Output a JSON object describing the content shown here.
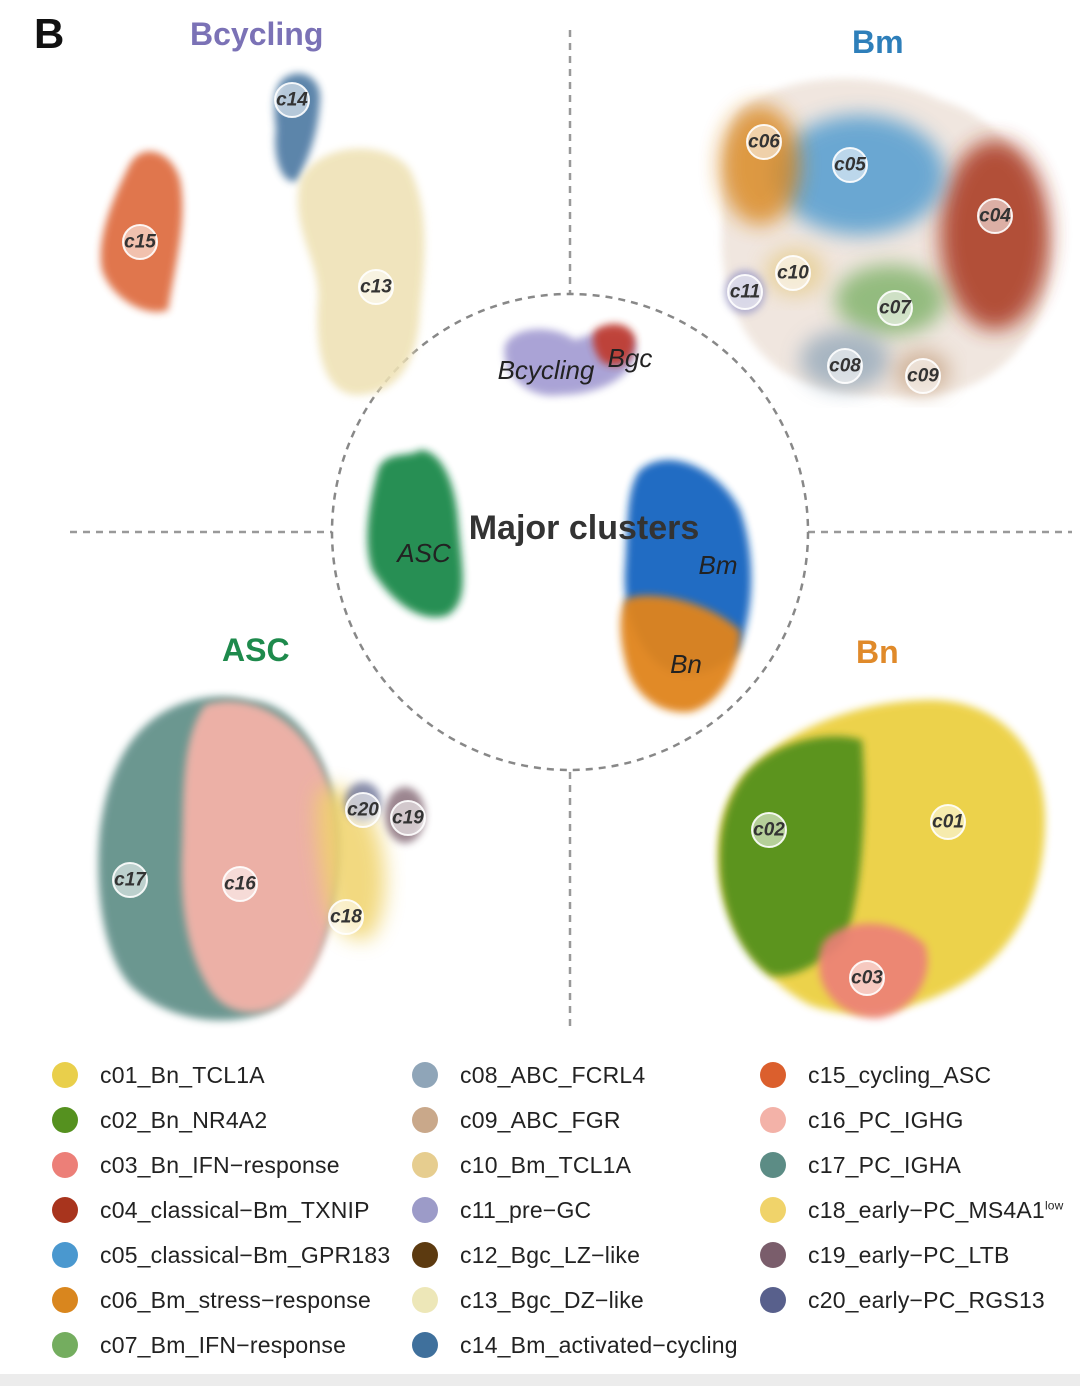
{
  "panel_letter": "B",
  "titles": {
    "bcycling": {
      "text": "Bcycling",
      "color": "#7b72b6"
    },
    "bm": {
      "text": "Bm",
      "color": "#2e7fba"
    },
    "asc": {
      "text": "ASC",
      "color": "#1e8a4c"
    },
    "bn": {
      "text": "Bn",
      "color": "#e08a2a"
    }
  },
  "center": {
    "title": "Major clusters",
    "labels": {
      "bcycling": "Bcycling",
      "bgc": "Bgc",
      "asc": "ASC",
      "bm": "Bm",
      "bn": "Bn"
    }
  },
  "cluster_labels": {
    "c01": "c01",
    "c02": "c02",
    "c03": "c03",
    "c04": "c04",
    "c05": "c05",
    "c06": "c06",
    "c07": "c07",
    "c08": "c08",
    "c09": "c09",
    "c10": "c10",
    "c11": "c11",
    "c13": "c13",
    "c14": "c14",
    "c15": "c15",
    "c16": "c16",
    "c17": "c17",
    "c18": "c18",
    "c19": "c19",
    "c20": "c20"
  },
  "legend": [
    {
      "label": "c01_Bn_TCL1A",
      "color": "#e9cf4b"
    },
    {
      "label": "c02_Bn_NR4A2",
      "color": "#55911f"
    },
    {
      "label": "c03_Bn_IFN−response",
      "color": "#ec7f78"
    },
    {
      "label": "c04_classical−Bm_TXNIP",
      "color": "#a8341d"
    },
    {
      "label": "c05_classical−Bm_GPR183",
      "color": "#4a98cf"
    },
    {
      "label": "c06_Bm_stress−response",
      "color": "#d9861e"
    },
    {
      "label": "c07_Bm_IFN−response",
      "color": "#74ad5f"
    },
    {
      "label": "c08_ABC_FCRL4",
      "color": "#8fa5b8"
    },
    {
      "label": "c09_ABC_FGR",
      "color": "#c9a88a"
    },
    {
      "label": "c10_Bm_TCL1A",
      "color": "#e6cd8f"
    },
    {
      "label": "c11_pre−GC",
      "color": "#9c9bc8"
    },
    {
      "label": "c12_Bgc_LZ−like",
      "color": "#5c3a10"
    },
    {
      "label": "c13_Bgc_DZ−like",
      "color": "#ede7b8"
    },
    {
      "label": "c14_Bm_activated−cycling",
      "color": "#3f709c"
    },
    {
      "label": "c15_cycling_ASC",
      "color": "#db5f2d"
    },
    {
      "label": "c16_PC_IGHG",
      "color": "#f3b2a8"
    },
    {
      "label": "c17_PC_IGHA",
      "color": "#5c8c85"
    },
    {
      "label": "c18_early−PC_MS4A1",
      "sup": "low",
      "color": "#f0d36a"
    },
    {
      "label": "c19_early−PC_LTB",
      "color": "#7a5d6b"
    },
    {
      "label": "c20_early−PC_RGS13",
      "color": "#58608c"
    }
  ]
}
